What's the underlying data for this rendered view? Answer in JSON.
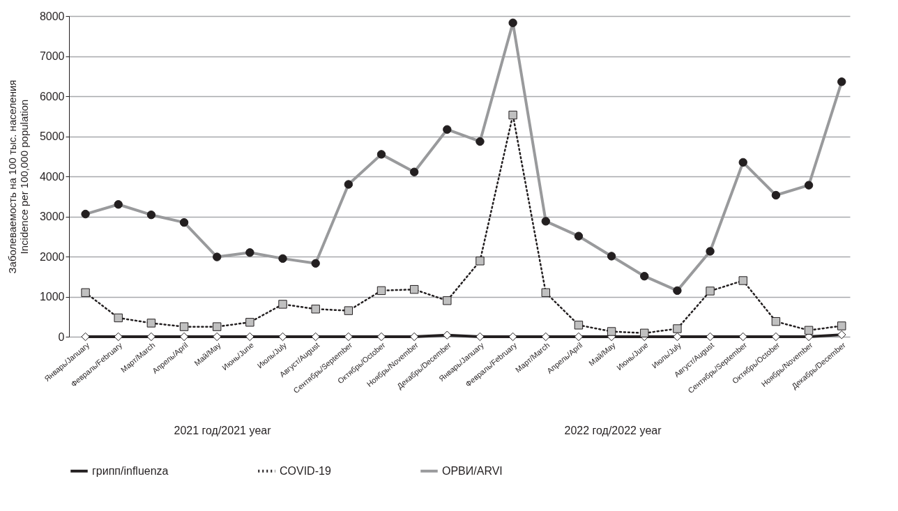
{
  "chart_data": {
    "type": "line",
    "ylabel": "Заболеваемость на 100 тыс. населения\nIncidence per 100,000 population",
    "categories": [
      "Январь/January",
      "Февраль/February",
      "Март/March",
      "Апрель/April",
      "Май/May",
      "Июнь/June",
      "Июль/July",
      "Август/August",
      "Сентябрь/September",
      "Октябрь/October",
      "Ноябрь/November",
      "Декабрь/December",
      "Январь/January",
      "Февраль/February",
      "Март/March",
      "Апрель/April",
      "Май/May",
      "Июнь/June",
      "Июль/July",
      "Август/August",
      "Сентябрь/September",
      "Октябрь/October",
      "Ноябрь/November",
      "Декабрь/December"
    ],
    "series": [
      {
        "name": "грипп/influenza",
        "color": "#231f20",
        "marker": "diamond",
        "line_style": "solid",
        "values": [
          0,
          0,
          0,
          0,
          0,
          0,
          0,
          0,
          0,
          0,
          0,
          40,
          0,
          0,
          0,
          0,
          0,
          0,
          0,
          0,
          0,
          0,
          0,
          50
        ]
      },
      {
        "name": "COVID-19",
        "color": "#231f20",
        "marker": "square",
        "line_style": "dotted",
        "values": [
          1100,
          470,
          340,
          250,
          250,
          360,
          810,
          690,
          650,
          1150,
          1180,
          900,
          1890,
          5530,
          1100,
          290,
          130,
          90,
          200,
          1140,
          1400,
          380,
          160,
          270
        ]
      },
      {
        "name": "ОРВИ/ARVI",
        "color": "#999a9c",
        "marker": "circle",
        "line_style": "solid",
        "values": [
          3060,
          3300,
          3040,
          2850,
          1990,
          2100,
          1950,
          1830,
          3800,
          4550,
          4110,
          5170,
          4870,
          7830,
          2880,
          2510,
          2010,
          1510,
          1150,
          2130,
          4350,
          3530,
          3780,
          6360
        ]
      }
    ],
    "ylim": [
      0,
      8000
    ],
    "yticks": [
      0,
      1000,
      2000,
      3000,
      4000,
      5000,
      6000,
      7000,
      8000
    ],
    "grid": "y",
    "legend": "bottom",
    "annotations": [
      "2021 год/2021 year",
      "2022 год/2022 year"
    ]
  }
}
